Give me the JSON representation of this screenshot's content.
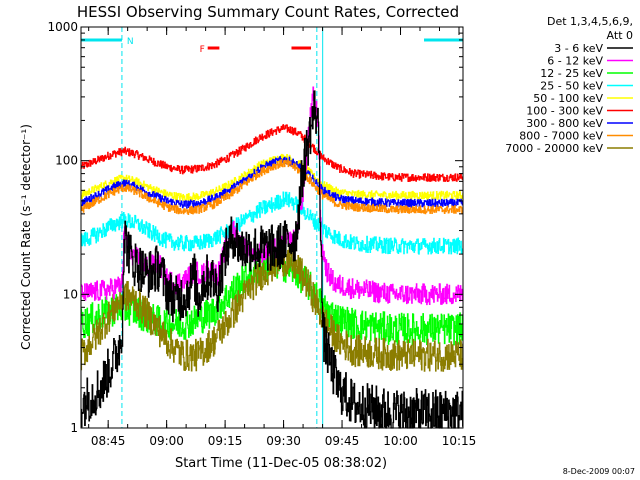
{
  "chart_data": {
    "type": "line",
    "title": "HESSI Observing Summary Count Rates, Corrected",
    "xlabel": "Start Time (11-Dec-05 08:38:02)",
    "ylabel": "Corrected Count Rate (s⁻¹ detector⁻¹)",
    "yscale": "log",
    "ylim": [
      1,
      1000
    ],
    "xlim_minutes": [
      0,
      98
    ],
    "x_ticks": [
      {
        "minute": 6.97,
        "label": "08:45"
      },
      {
        "minute": 21.97,
        "label": "09:00"
      },
      {
        "minute": 36.97,
        "label": "09:15"
      },
      {
        "minute": 51.97,
        "label": "09:30"
      },
      {
        "minute": 66.97,
        "label": "09:45"
      },
      {
        "minute": 81.97,
        "label": "10:00"
      },
      {
        "minute": 96.97,
        "label": "10:15"
      }
    ],
    "y_ticks": [
      {
        "value": 1,
        "label": "1"
      },
      {
        "value": 10,
        "label": "10"
      },
      {
        "value": 100,
        "label": "100"
      },
      {
        "value": 1000,
        "label": "1000"
      }
    ],
    "legend_header": [
      "Det 1,3,4,5,6,9,",
      "Att 0"
    ],
    "legend_position": "right",
    "timestamp": "8-Dec-2009 00:07",
    "series": [
      {
        "name": "3 - 6 keV",
        "color": "#000000",
        "points": [
          [
            0,
            1.5
          ],
          [
            5,
            2
          ],
          [
            9,
            3.5
          ],
          [
            10.5,
            5
          ],
          [
            11,
            28
          ],
          [
            13,
            18
          ],
          [
            17,
            14
          ],
          [
            20,
            16
          ],
          [
            22,
            11
          ],
          [
            24,
            9
          ],
          [
            27,
            10
          ],
          [
            29,
            14
          ],
          [
            30,
            9
          ],
          [
            31,
            12
          ],
          [
            33,
            14
          ],
          [
            35,
            11
          ],
          [
            37,
            20
          ],
          [
            39,
            28
          ],
          [
            41,
            22
          ],
          [
            44,
            22
          ],
          [
            47,
            22
          ],
          [
            50,
            22
          ],
          [
            52,
            24
          ],
          [
            55,
            26
          ],
          [
            57,
            90
          ],
          [
            59,
            180
          ],
          [
            60,
            260
          ],
          [
            61,
            150
          ],
          [
            62,
            5
          ],
          [
            64,
            3
          ],
          [
            66,
            2
          ],
          [
            70,
            1.5
          ],
          [
            80,
            1.3
          ],
          [
            98,
            1.3
          ]
        ]
      },
      {
        "name": "6 - 12 keV",
        "color": "#ff00ff",
        "points": [
          [
            0,
            10
          ],
          [
            8,
            11
          ],
          [
            10.5,
            12
          ],
          [
            11,
            28
          ],
          [
            13,
            20
          ],
          [
            17,
            16
          ],
          [
            20,
            17
          ],
          [
            22,
            13
          ],
          [
            24,
            12
          ],
          [
            27,
            13
          ],
          [
            29,
            15
          ],
          [
            31,
            14
          ],
          [
            33,
            16
          ],
          [
            35,
            14
          ],
          [
            37,
            22
          ],
          [
            39,
            30
          ],
          [
            41,
            24
          ],
          [
            44,
            20
          ],
          [
            47,
            21
          ],
          [
            50,
            22
          ],
          [
            52,
            24
          ],
          [
            55,
            26
          ],
          [
            57,
            60
          ],
          [
            58.5,
            180
          ],
          [
            59.5,
            300
          ],
          [
            60.5,
            230
          ],
          [
            61,
            160
          ],
          [
            61.5,
            25
          ],
          [
            63,
            15
          ],
          [
            65,
            12
          ],
          [
            70,
            11
          ],
          [
            80,
            10
          ],
          [
            98,
            10
          ]
        ]
      },
      {
        "name": "12 - 25 keV",
        "color": "#00ff00",
        "points": [
          [
            0,
            6
          ],
          [
            5,
            7
          ],
          [
            10,
            8
          ],
          [
            14,
            7.5
          ],
          [
            18,
            6.5
          ],
          [
            22,
            6
          ],
          [
            26,
            6
          ],
          [
            30,
            6.5
          ],
          [
            34,
            7.5
          ],
          [
            38,
            10
          ],
          [
            42,
            13
          ],
          [
            46,
            16
          ],
          [
            50,
            17
          ],
          [
            53,
            16
          ],
          [
            56,
            14
          ],
          [
            58,
            12
          ],
          [
            60,
            10
          ],
          [
            62,
            8
          ],
          [
            66,
            6.5
          ],
          [
            70,
            6
          ],
          [
            80,
            5.5
          ],
          [
            98,
            5.5
          ]
        ]
      },
      {
        "name": "25 - 50 keV",
        "color": "#00ffff",
        "points": [
          [
            0,
            25
          ],
          [
            4,
            28
          ],
          [
            8,
            33
          ],
          [
            11,
            36
          ],
          [
            14,
            34
          ],
          [
            18,
            29
          ],
          [
            22,
            25
          ],
          [
            26,
            24
          ],
          [
            30,
            24
          ],
          [
            34,
            26
          ],
          [
            38,
            30
          ],
          [
            42,
            36
          ],
          [
            46,
            43
          ],
          [
            50,
            48
          ],
          [
            52,
            52
          ],
          [
            54,
            50
          ],
          [
            56,
            45
          ],
          [
            58,
            40
          ],
          [
            60,
            35
          ],
          [
            62,
            31
          ],
          [
            66,
            26
          ],
          [
            70,
            24
          ],
          [
            80,
            23
          ],
          [
            98,
            23
          ]
        ]
      },
      {
        "name": "50 - 100 keV",
        "color": "#ffff00",
        "points": [
          [
            0,
            55
          ],
          [
            4,
            62
          ],
          [
            8,
            70
          ],
          [
            11,
            74
          ],
          [
            14,
            70
          ],
          [
            18,
            62
          ],
          [
            22,
            56
          ],
          [
            26,
            53
          ],
          [
            30,
            54
          ],
          [
            34,
            58
          ],
          [
            38,
            66
          ],
          [
            42,
            78
          ],
          [
            46,
            93
          ],
          [
            50,
            103
          ],
          [
            52,
            106
          ],
          [
            54,
            102
          ],
          [
            56,
            94
          ],
          [
            58,
            85
          ],
          [
            60,
            74
          ],
          [
            62,
            66
          ],
          [
            66,
            58
          ],
          [
            70,
            56
          ],
          [
            80,
            55
          ],
          [
            98,
            55
          ]
        ]
      },
      {
        "name": "100 - 300 keV",
        "color": "#ff0000",
        "points": [
          [
            0,
            90
          ],
          [
            4,
            100
          ],
          [
            8,
            112
          ],
          [
            11,
            118
          ],
          [
            14,
            112
          ],
          [
            18,
            100
          ],
          [
            22,
            90
          ],
          [
            26,
            85
          ],
          [
            30,
            87
          ],
          [
            34,
            93
          ],
          [
            38,
            106
          ],
          [
            42,
            125
          ],
          [
            46,
            150
          ],
          [
            50,
            168
          ],
          [
            52,
            175
          ],
          [
            54,
            170
          ],
          [
            56,
            158
          ],
          [
            58,
            140
          ],
          [
            60,
            122
          ],
          [
            62,
            105
          ],
          [
            66,
            88
          ],
          [
            70,
            80
          ],
          [
            80,
            75
          ],
          [
            98,
            75
          ]
        ]
      },
      {
        "name": "300 - 800 keV",
        "color": "#0000ff",
        "points": [
          [
            0,
            48
          ],
          [
            4,
            55
          ],
          [
            8,
            63
          ],
          [
            11,
            68
          ],
          [
            14,
            64
          ],
          [
            18,
            56
          ],
          [
            22,
            50
          ],
          [
            26,
            47
          ],
          [
            30,
            48
          ],
          [
            34,
            52
          ],
          [
            38,
            60
          ],
          [
            42,
            72
          ],
          [
            46,
            88
          ],
          [
            50,
            98
          ],
          [
            52,
            102
          ],
          [
            54,
            98
          ],
          [
            56,
            90
          ],
          [
            58,
            80
          ],
          [
            60,
            70
          ],
          [
            62,
            60
          ],
          [
            66,
            52
          ],
          [
            70,
            50
          ],
          [
            80,
            48
          ],
          [
            98,
            48
          ]
        ]
      },
      {
        "name": "800 - 7000 keV",
        "color": "#ff8c00",
        "points": [
          [
            0,
            43
          ],
          [
            4,
            50
          ],
          [
            8,
            58
          ],
          [
            11,
            63
          ],
          [
            14,
            59
          ],
          [
            18,
            51
          ],
          [
            22,
            45
          ],
          [
            26,
            42
          ],
          [
            30,
            43
          ],
          [
            34,
            47
          ],
          [
            38,
            55
          ],
          [
            42,
            67
          ],
          [
            46,
            82
          ],
          [
            50,
            93
          ],
          [
            52,
            96
          ],
          [
            54,
            92
          ],
          [
            56,
            84
          ],
          [
            58,
            75
          ],
          [
            60,
            64
          ],
          [
            62,
            55
          ],
          [
            66,
            47
          ],
          [
            70,
            45
          ],
          [
            80,
            43
          ],
          [
            98,
            43
          ]
        ]
      },
      {
        "name": "7000 - 20000 keV",
        "color": "#8b7d00",
        "points": [
          [
            0,
            3.5
          ],
          [
            4,
            5
          ],
          [
            8,
            7.5
          ],
          [
            11,
            10
          ],
          [
            14,
            9
          ],
          [
            18,
            6.5
          ],
          [
            22,
            4.5
          ],
          [
            26,
            3.5
          ],
          [
            30,
            3.5
          ],
          [
            34,
            4.5
          ],
          [
            38,
            6.5
          ],
          [
            42,
            10
          ],
          [
            46,
            14
          ],
          [
            50,
            17
          ],
          [
            52,
            18
          ],
          [
            54,
            17
          ],
          [
            56,
            15
          ],
          [
            58,
            12
          ],
          [
            60,
            9
          ],
          [
            62,
            6.5
          ],
          [
            66,
            4.5
          ],
          [
            70,
            3.8
          ],
          [
            80,
            3.5
          ],
          [
            98,
            3.5
          ]
        ]
      }
    ],
    "markers": {
      "N_label": "N",
      "F_label": "F",
      "night_bars": [
        [
          0,
          10.5
        ],
        [
          88,
          98
        ]
      ],
      "flare_bars": [
        [
          32.5,
          35.5
        ],
        [
          54,
          59
        ]
      ],
      "vertical_lines": [
        0,
        10.5,
        60.5,
        62,
        98
      ]
    }
  }
}
